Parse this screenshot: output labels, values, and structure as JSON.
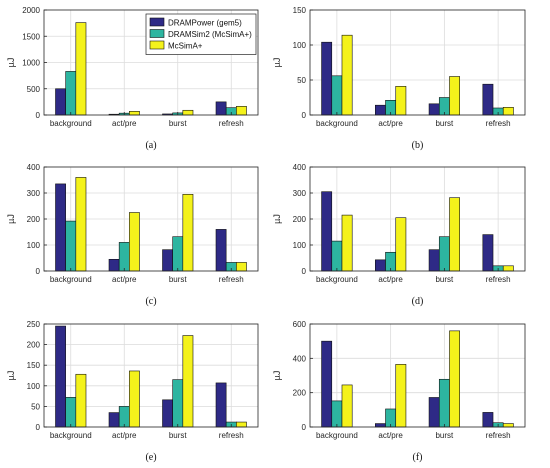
{
  "colors": {
    "DRAMPower": "#2e2a86",
    "DRAMSim2": "#2db5a0",
    "McSimA": "#f4f21b"
  },
  "chart_data": [
    {
      "type": "bar",
      "panel": "(a)",
      "ylabel": "µJ",
      "ylim": [
        0,
        2000
      ],
      "yticks": [
        0,
        500,
        1000,
        1500,
        2000
      ],
      "categories": [
        "background",
        "act/pre",
        "burst",
        "refresh"
      ],
      "legend": "top-right",
      "series": [
        {
          "name": "DRAMPower (gem5)",
          "values": [
            500,
            15,
            20,
            250
          ]
        },
        {
          "name": "DRAMSim2 (McSimA+)",
          "values": [
            830,
            35,
            40,
            140
          ]
        },
        {
          "name": "McSimA+",
          "values": [
            1760,
            70,
            90,
            165
          ]
        }
      ]
    },
    {
      "type": "bar",
      "panel": "(b)",
      "ylabel": "µJ",
      "ylim": [
        0,
        150
      ],
      "yticks": [
        0,
        50,
        100,
        150
      ],
      "categories": [
        "background",
        "act/pre",
        "burst",
        "refresh"
      ],
      "series": [
        {
          "values": [
            104,
            14,
            16,
            44
          ]
        },
        {
          "values": [
            56,
            21,
            25,
            10
          ]
        },
        {
          "values": [
            114,
            41,
            55,
            11
          ]
        }
      ]
    },
    {
      "type": "bar",
      "panel": "(c)",
      "ylabel": "µJ",
      "ylim": [
        0,
        400
      ],
      "yticks": [
        0,
        100,
        200,
        300,
        400
      ],
      "categories": [
        "background",
        "act/pre",
        "burst",
        "refresh"
      ],
      "series": [
        {
          "values": [
            335,
            45,
            82,
            160
          ]
        },
        {
          "values": [
            192,
            110,
            132,
            33
          ]
        },
        {
          "values": [
            360,
            225,
            295,
            33
          ]
        }
      ]
    },
    {
      "type": "bar",
      "panel": "(d)",
      "ylabel": "µJ",
      "ylim": [
        0,
        400
      ],
      "yticks": [
        0,
        100,
        200,
        300,
        400
      ],
      "categories": [
        "background",
        "act/pre",
        "burst",
        "refresh"
      ],
      "series": [
        {
          "values": [
            305,
            43,
            82,
            140
          ]
        },
        {
          "values": [
            115,
            72,
            132,
            20
          ]
        },
        {
          "values": [
            215,
            205,
            282,
            20
          ]
        }
      ]
    },
    {
      "type": "bar",
      "panel": "(e)",
      "ylabel": "µJ",
      "ylim": [
        0,
        250
      ],
      "yticks": [
        0,
        50,
        100,
        150,
        200,
        250
      ],
      "categories": [
        "background",
        "act/pre",
        "burst",
        "refresh"
      ],
      "series": [
        {
          "values": [
            245,
            35,
            66,
            107
          ]
        },
        {
          "values": [
            72,
            50,
            115,
            12
          ]
        },
        {
          "values": [
            128,
            136,
            222,
            12
          ]
        }
      ]
    },
    {
      "type": "bar",
      "panel": "(f)",
      "ylabel": "µJ",
      "ylim": [
        0,
        600
      ],
      "yticks": [
        0,
        200,
        400,
        600
      ],
      "categories": [
        "background",
        "act/pre",
        "burst",
        "refresh"
      ],
      "series": [
        {
          "values": [
            500,
            20,
            172,
            85
          ]
        },
        {
          "values": [
            152,
            105,
            278,
            25
          ]
        },
        {
          "values": [
            245,
            365,
            560,
            20
          ]
        }
      ]
    }
  ]
}
